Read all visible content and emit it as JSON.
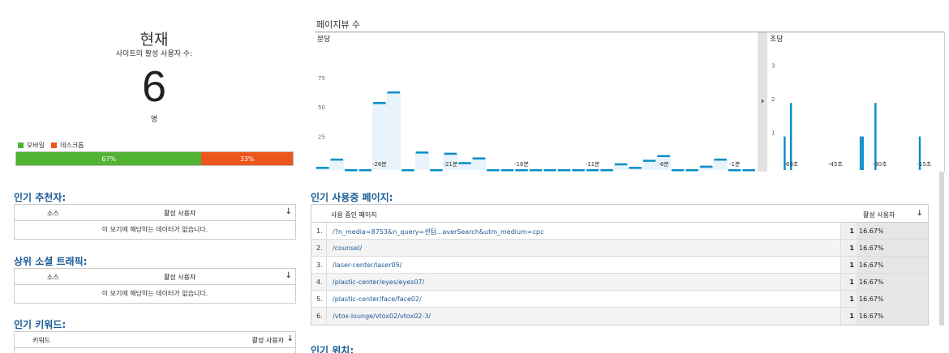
{
  "now": {
    "title": "현재",
    "subtitle": "사이트의 활성 사용자 수:",
    "count": "6",
    "unit": "명"
  },
  "device_split": {
    "legend": [
      {
        "label": "모바일",
        "color": "#50b432"
      },
      {
        "label": "데스크톱",
        "color": "#ed561b"
      }
    ],
    "segments": [
      {
        "label": "67%",
        "fraction": 0.67,
        "color": "#50b432"
      },
      {
        "label": "33%",
        "fraction": 0.33,
        "color": "#ed561b"
      }
    ]
  },
  "referrals": {
    "title": "인기 추천자:",
    "col_source": "소스",
    "col_users": "활성 사용자",
    "sort_icon": "↓",
    "empty": "이 보기에 해당하는 데이터가 없습니다."
  },
  "social": {
    "title": "상위 소셜 트래픽:",
    "col_source": "소스",
    "col_users": "활성 사용자",
    "sort_icon": "↓",
    "empty": "이 보기에 해당하는 데이터가 없습니다."
  },
  "keywords": {
    "title": "인기 키워드:",
    "col_keyword": "키워드",
    "col_users": "활성 사용자",
    "sort_icon": "↓"
  },
  "chart_data": [
    {
      "type": "bar",
      "title": "페이지뷰 수",
      "subtitle": "분당",
      "ylim": [
        0,
        90
      ],
      "y_ticks": [
        25,
        50,
        75
      ],
      "x_tick_labels": [
        "-26분",
        "-21분",
        "-16분",
        "-11분",
        "-6분",
        "-1분"
      ],
      "values": [
        2,
        9,
        0,
        0,
        57,
        66,
        0,
        15,
        0,
        14,
        6,
        10,
        0,
        0,
        0,
        0,
        0,
        0,
        0,
        0,
        0,
        5,
        2,
        8,
        12,
        0,
        0,
        3,
        9,
        0,
        0
      ]
    },
    {
      "type": "bar",
      "subtitle": "초당",
      "ylim": [
        0,
        3.5
      ],
      "y_ticks": [
        1,
        2,
        3
      ],
      "x_tick_labels": [
        "-60초",
        "-45초",
        "-30초",
        "-15초"
      ],
      "values": [
        0,
        0,
        0,
        0,
        0,
        0,
        0,
        1,
        0,
        0,
        2,
        0,
        0,
        0,
        0,
        0,
        0,
        0,
        0,
        0,
        0,
        0,
        0,
        0,
        0,
        0,
        0,
        0,
        0,
        0,
        0,
        0,
        0,
        0,
        0,
        0,
        0,
        0,
        0,
        0,
        0,
        0,
        0,
        1,
        1,
        0,
        0,
        0,
        0,
        0,
        2,
        0,
        0,
        0,
        0,
        0,
        0,
        0,
        0,
        0,
        0,
        0,
        0,
        0,
        0,
        0,
        0,
        0,
        0,
        0,
        0,
        1,
        0,
        0,
        0,
        0,
        0,
        0,
        0,
        0,
        0,
        0,
        0
      ]
    }
  ],
  "chart_toggle_icon": "›",
  "top_pages": {
    "title": "인기 사용중 페이지:",
    "col_page": "사용 중인 페이지",
    "col_users": "활성 사용자",
    "sort_icon": "↓",
    "rows": [
      {
        "num": "1.",
        "path": "/?n_media=8753&n_query=센텀...averSearch&utm_medium=cpc",
        "users": "1",
        "pct": "16.67%"
      },
      {
        "num": "2.",
        "path": "/counsel/",
        "users": "1",
        "pct": "16.67%"
      },
      {
        "num": "3.",
        "path": "/laser-center/laser05/",
        "users": "1",
        "pct": "16.67%"
      },
      {
        "num": "4.",
        "path": "/plastic-center/eyes/eyes07/",
        "users": "1",
        "pct": "16.67%"
      },
      {
        "num": "5.",
        "path": "/plastic-center/face/face02/",
        "users": "1",
        "pct": "16.67%"
      },
      {
        "num": "6.",
        "path": "/vtox-lounge/vtox02/vtox02-3/",
        "users": "1",
        "pct": "16.67%"
      }
    ]
  },
  "locations": {
    "title": "인기 위치:"
  }
}
